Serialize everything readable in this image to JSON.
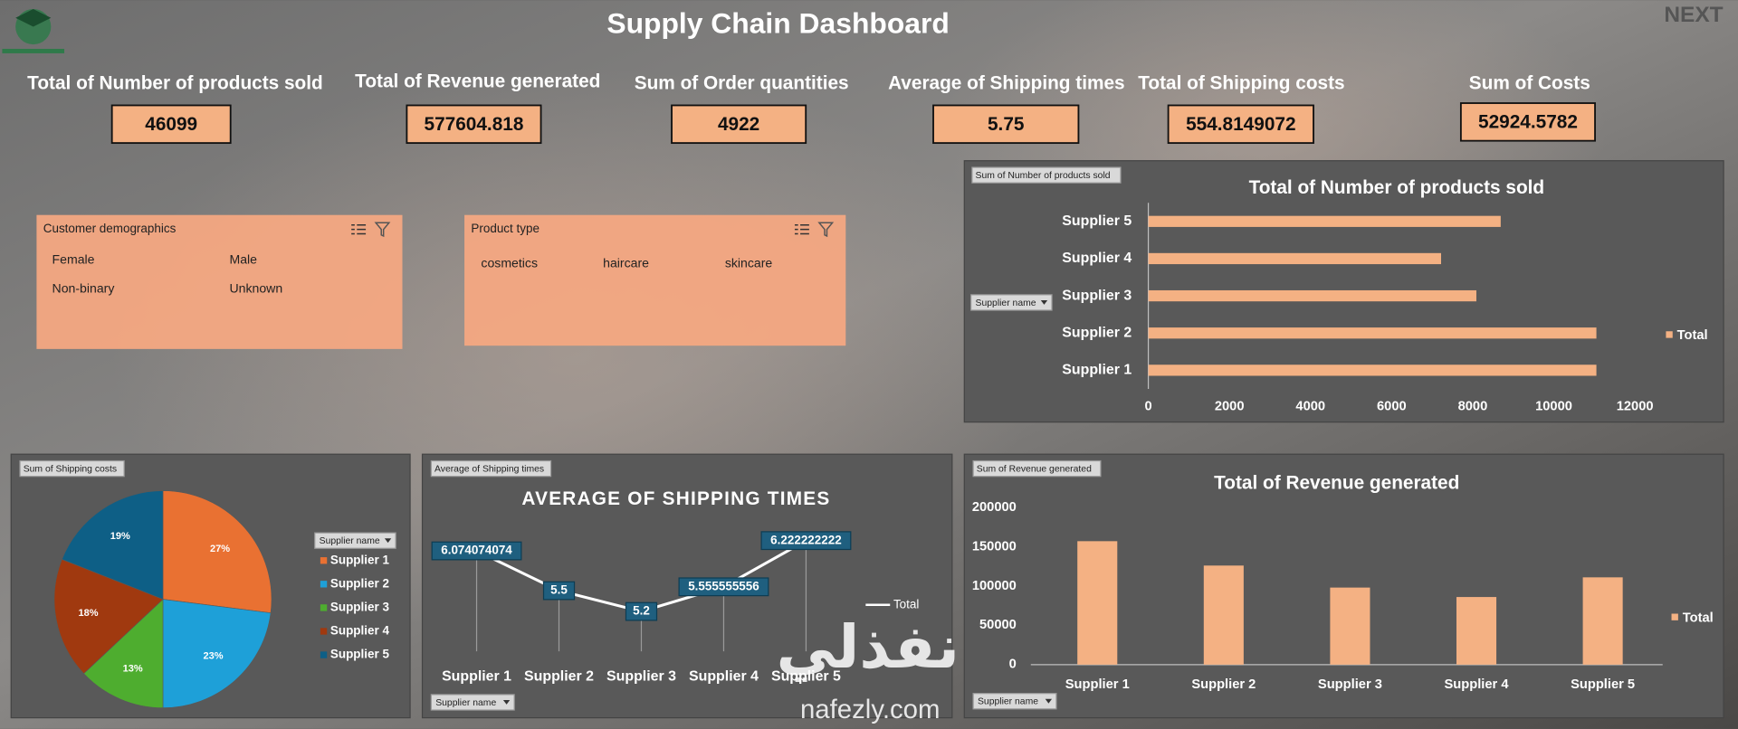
{
  "title": "Supply Chain Dashboard",
  "watermark": [
    "NEXT",
    "نفذلي",
    "nafezly.com"
  ],
  "kpis": [
    {
      "label": "Total of Number of products sold",
      "value": 46099
    },
    {
      "label": "Total of Revenue generated",
      "value": 577604.818
    },
    {
      "label": "Sum of Order quantities",
      "value": 4922
    },
    {
      "label": "Average of Shipping times",
      "value": 5.75
    },
    {
      "label": "Total of Shipping costs",
      "value": 554.8149072
    },
    {
      "label": "Sum of Costs",
      "value": 52924.5782
    }
  ],
  "slicers": [
    {
      "title": "Customer demographics",
      "items": [
        "Female",
        "Male",
        "Non-binary",
        "Unknown"
      ]
    },
    {
      "title": "Product type",
      "items": [
        "cosmetics",
        "haircare",
        "skincare"
      ]
    }
  ],
  "chart_data": [
    {
      "type": "bar",
      "horizontal": true,
      "title": "Total of Number of products sold",
      "field_button": "Sum of Number of products sold",
      "axis_button": "Supplier name",
      "categories": [
        "Supplier 1",
        "Supplier 2",
        "Supplier 3",
        "Supplier 4",
        "Supplier 5"
      ],
      "series": [
        {
          "name": "Total",
          "color": "#f4b183",
          "values": [
            11050,
            11050,
            8090,
            7220,
            8690
          ]
        }
      ],
      "xlim": [
        0,
        12000
      ],
      "xticks": [
        0,
        2000,
        4000,
        6000,
        8000,
        10000,
        12000
      ],
      "legend": "right"
    },
    {
      "type": "pie",
      "field_button": "Sum of Shipping costs",
      "axis_button": "Supplier name",
      "categories": [
        "Supplier 1",
        "Supplier 2",
        "Supplier 3",
        "Supplier 4",
        "Supplier 5"
      ],
      "values": [
        27,
        23,
        13,
        18,
        19
      ],
      "value_labels": [
        "27%",
        "23%",
        "13%",
        "18%",
        "19%"
      ],
      "colors": [
        "#e97132",
        "#1ea0d8",
        "#4ead2f",
        "#a0390f",
        "#0e5f86"
      ],
      "legend": "right"
    },
    {
      "type": "line",
      "title": "AVERAGE OF SHIPPING TIMES",
      "field_button": "Average of Shipping times",
      "axis_button": "Supplier name",
      "categories": [
        "Supplier 1",
        "Supplier 2",
        "Supplier 3",
        "Supplier 4",
        "Supplier 5"
      ],
      "series": [
        {
          "name": "Total",
          "color": "#ffffff",
          "values": [
            6.074074074,
            5.5,
            5.2,
            5.555555556,
            6.222222222
          ]
        }
      ],
      "legend": "right"
    },
    {
      "type": "bar",
      "horizontal": false,
      "title": "Total of Revenue generated",
      "field_button": "Sum of Revenue generated",
      "axis_button": "Supplier name",
      "categories": [
        "Supplier 1",
        "Supplier 2",
        "Supplier 3",
        "Supplier 4",
        "Supplier 5"
      ],
      "series": [
        {
          "name": "Total",
          "color": "#f4b183",
          "values": [
            157000,
            126000,
            98000,
            86000,
            111000
          ]
        }
      ],
      "ylim": [
        0,
        200000
      ],
      "yticks": [
        0,
        50000,
        100000,
        150000,
        200000
      ],
      "legend": "right"
    }
  ]
}
